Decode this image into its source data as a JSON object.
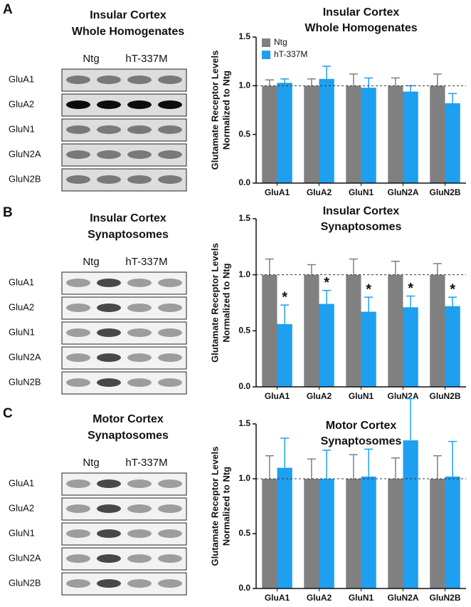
{
  "panels": [
    {
      "letter": "A",
      "title": [
        "Insular Cortex",
        "Whole Homogenates"
      ],
      "groups": [
        "Ntg",
        "hT-337M"
      ],
      "rows": [
        "GluA1",
        "GluA2",
        "GluN1",
        "GluN2A",
        "GluN2B"
      ]
    },
    {
      "letter": "B",
      "title": [
        "Insular Cortex",
        "Synaptosomes"
      ],
      "groups": [
        "Ntg",
        "hT-337M"
      ],
      "rows": [
        "GluA1",
        "GluA2",
        "GluN1",
        "GluN2A",
        "GluN2B"
      ]
    },
    {
      "letter": "C",
      "title": [
        "Motor Cortex",
        "Synaptosomes"
      ],
      "groups": [
        "Ntg",
        "hT-337M"
      ],
      "rows": [
        "GluA1",
        "GluA2",
        "GluN1",
        "GluN2A",
        "GluN2B"
      ]
    }
  ],
  "chart_data": [
    {
      "type": "bar",
      "title": [
        "Insular Cortex",
        "Whole Homogenates"
      ],
      "ylabel": [
        "Glutamate Receptor Levels",
        "Normalized to Ntg"
      ],
      "categories": [
        "GluA1",
        "GluA2",
        "GluN1",
        "GluN2A",
        "GluN2B"
      ],
      "series": [
        {
          "name": "Ntg",
          "color": "#808080",
          "values": [
            1,
            1,
            1,
            1,
            1
          ],
          "errors": [
            0.06,
            0.07,
            0.12,
            0.08,
            0.12
          ]
        },
        {
          "name": "hT-337M",
          "color": "#1e9fef",
          "values": [
            1.03,
            1.07,
            0.98,
            0.94,
            0.82
          ],
          "errors": [
            0.04,
            0.13,
            0.1,
            0.06,
            0.1
          ]
        }
      ],
      "ylim": [
        0,
        1.5
      ],
      "yticks": [
        {
          "value": 0,
          "label": "0.0"
        },
        0.5,
        {
          "value": 1,
          "label": "1.0"
        },
        1.5
      ],
      "reference_line": 1,
      "legend": "upper left"
    },
    {
      "type": "bar",
      "title": [
        "Insular Cortex",
        "Synaptosomes"
      ],
      "ylabel": [
        "Glutamate Receptor Levels",
        "Normalized to Ntg"
      ],
      "categories": [
        "GluA1",
        "GluA2",
        "GluN1",
        "GluN2A",
        "GluN2B"
      ],
      "series": [
        {
          "color": "#808080",
          "values": [
            1,
            1,
            1,
            1,
            1
          ],
          "errors": [
            0.14,
            0.09,
            0.14,
            0.12,
            0.1
          ]
        },
        {
          "color": "#1e9fef",
          "values": [
            0.56,
            0.74,
            0.67,
            0.71,
            0.72
          ],
          "errors": [
            0.17,
            0.12,
            0.13,
            0.1,
            0.08
          ],
          "significance": [
            "*",
            "*",
            "*",
            "*",
            "*"
          ]
        }
      ],
      "ylim": [
        0,
        1.5
      ],
      "yticks": [
        {
          "value": 0,
          "label": "0.0"
        },
        0.5,
        {
          "value": 1,
          "label": "1.0"
        },
        1.5
      ],
      "reference_line": 1
    },
    {
      "type": "bar",
      "title": [
        "Motor Cortex",
        "Synaptosomes"
      ],
      "ylabel": [
        "Glutamate Receptor Levels",
        "Normalized to Ntg"
      ],
      "categories": [
        "GluA1",
        "GluA2",
        "GluN1",
        "GluN2A",
        "GluN2B"
      ],
      "series": [
        {
          "color": "#808080",
          "values": [
            1,
            1,
            1,
            1,
            1
          ],
          "errors": [
            0.21,
            0.18,
            0.22,
            0.19,
            0.21
          ]
        },
        {
          "color": "#1e9fef",
          "values": [
            1.1,
            1.0,
            1.02,
            1.35,
            1.02
          ],
          "errors": [
            0.27,
            0.26,
            0.25,
            0.38,
            0.32
          ]
        }
      ],
      "ylim": [
        0,
        1.5
      ],
      "yticks": [
        {
          "value": 0,
          "label": "0.0"
        },
        0.5,
        {
          "value": 1,
          "label": "1.0"
        },
        1.5
      ],
      "reference_line": 1
    }
  ]
}
